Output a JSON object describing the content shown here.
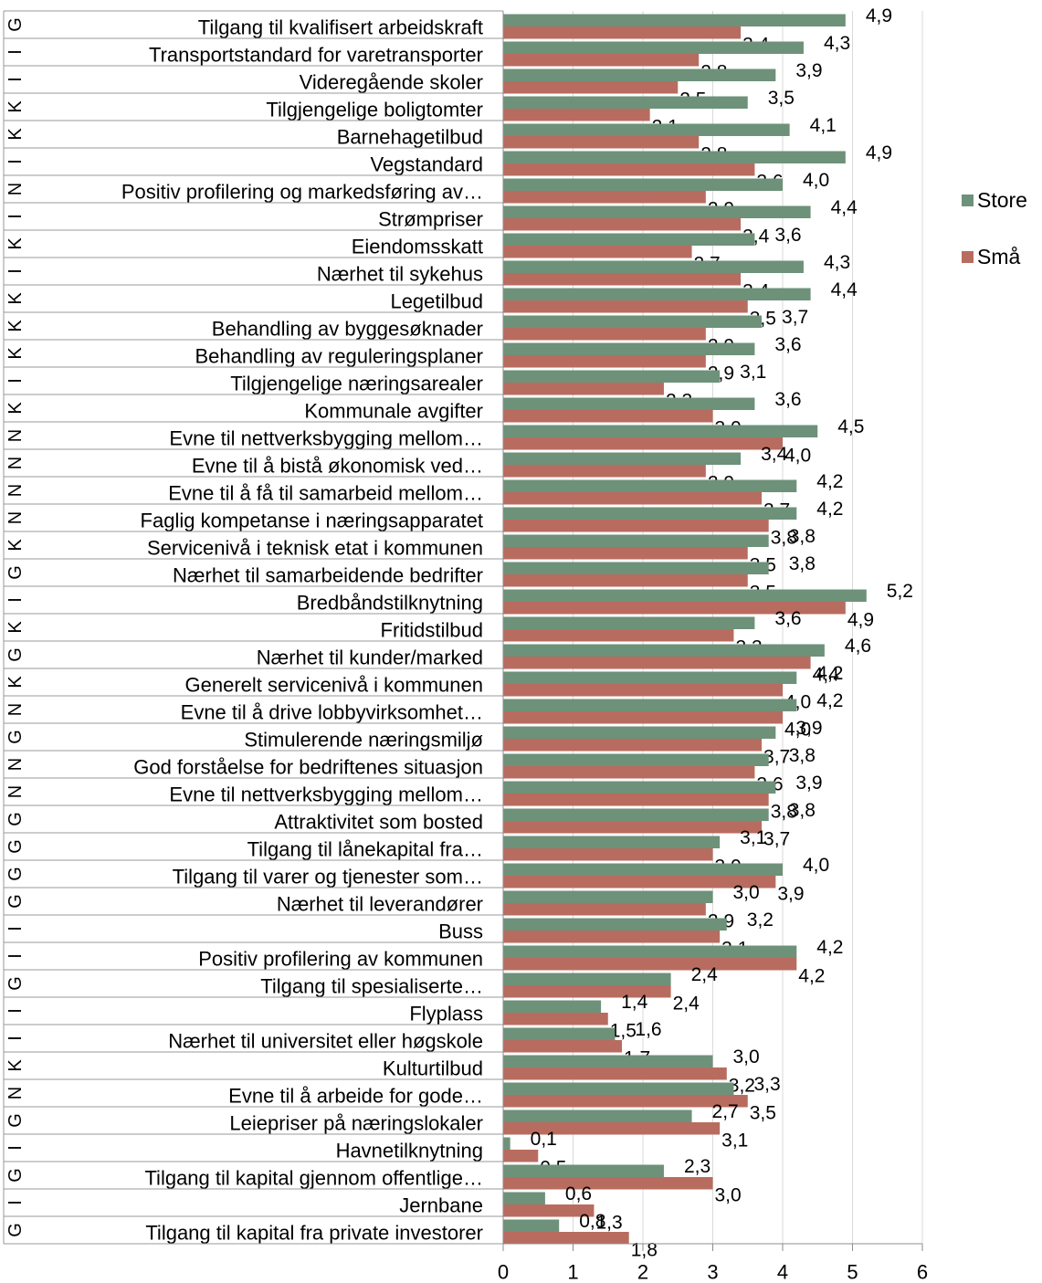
{
  "chart_data": {
    "type": "bar",
    "orientation": "horizontal",
    "group_codes": [
      "G",
      "I",
      "I",
      "K",
      "K",
      "I",
      "N",
      "I",
      "K",
      "I",
      "K",
      "K",
      "K",
      "I",
      "K",
      "N",
      "N",
      "N",
      "N",
      "K",
      "G",
      "I",
      "K",
      "G",
      "K",
      "N",
      "G",
      "N",
      "N",
      "G",
      "G",
      "G",
      "G",
      "I",
      "I",
      "G",
      "I",
      "I",
      "K",
      "N",
      "G",
      "I",
      "G",
      "I",
      "G"
    ],
    "categories": [
      "Tilgang til kvalifisert arbeidskraft",
      "Transportstandard for varetransporter",
      "Videregående skoler",
      "Tilgjengelige boligtomter",
      "Barnehagetilbud",
      "Vegstandard",
      "Positiv profilering og markedsføring av…",
      "Strømpriser",
      "Eiendomsskatt",
      "Nærhet til sykehus",
      "Legetilbud",
      "Behandling av byggesøknader",
      "Behandling av reguleringsplaner",
      "Tilgjengelige næringsarealer",
      "Kommunale avgifter",
      "Evne til nettverksbygging mellom…",
      "Evne til å bistå økonomisk ved…",
      "Evne til å få til samarbeid mellom…",
      "Faglig kompetanse i næringsapparatet",
      "Servicenivå i teknisk etat i kommunen",
      "Nærhet til samarbeidende bedrifter",
      "Bredbåndstilknytning",
      "Fritidstilbud",
      "Nærhet til kunder/marked",
      "Generelt servicenivå i kommunen",
      "Evne til å drive lobbyvirksomhet…",
      "Stimulerende næringsmiljø",
      "God forståelse for bedriftenes situasjon",
      "Evne til nettverksbygging mellom…",
      "Attraktivitet som bosted",
      "Tilgang til lånekapital fra…",
      "Tilgang til varer og tjenester som…",
      "Nærhet til leverandører",
      "Buss",
      "Positiv profilering av kommunen",
      "Tilgang til spesialiserte…",
      "Flyplass",
      "Nærhet til universitet eller høgskole",
      "Kulturtilbud",
      "Evne til å arbeide for gode…",
      "Leiepriser på næringslokaler",
      "Havnetilknytning",
      "Tilgang til kapital gjennom offentlige…",
      "Jernbane",
      "Tilgang til kapital fra private investorer"
    ],
    "series": [
      {
        "name": "Store",
        "color": "#6e9179",
        "values": [
          4.9,
          4.3,
          3.9,
          3.5,
          4.1,
          4.9,
          4.0,
          4.4,
          3.6,
          4.3,
          4.4,
          3.7,
          3.6,
          3.1,
          3.6,
          4.5,
          3.4,
          4.2,
          4.2,
          3.8,
          3.8,
          5.2,
          3.6,
          4.6,
          4.2,
          4.2,
          3.9,
          3.8,
          3.9,
          3.8,
          3.1,
          4.0,
          3.0,
          3.2,
          4.2,
          2.4,
          1.4,
          1.6,
          3.0,
          3.3,
          2.7,
          0.1,
          2.3,
          0.6,
          0.8
        ],
        "labels": [
          "4,9",
          "4,3",
          "3,9",
          "3,5",
          "4,1",
          "4,9",
          "4,0",
          "4,4",
          "3,6",
          "4,3",
          "4,4",
          "3,7",
          "3,6",
          "3,1",
          "3,6",
          "4,5",
          "3,4",
          "4,2",
          "4,2",
          "3,8",
          "3,8",
          "5,2",
          "3,6",
          "4,6",
          "4,2",
          "4,2",
          "3,9",
          "3,8",
          "3,9",
          "3,8",
          "3,1",
          "4,0",
          "3,0",
          "3,2",
          "4,2",
          "2,4",
          "1,4",
          "1,6",
          "3,0",
          "3,3",
          "2,7",
          "0,1",
          "2,3",
          "0,6",
          "0,8"
        ]
      },
      {
        "name": "Små",
        "color": "#b86c5f",
        "values": [
          3.4,
          2.8,
          2.5,
          2.1,
          2.8,
          3.6,
          2.9,
          3.4,
          2.7,
          3.4,
          3.5,
          2.9,
          2.9,
          2.3,
          3.0,
          4.0,
          2.9,
          3.7,
          3.8,
          3.5,
          3.5,
          4.9,
          3.3,
          4.4,
          4.0,
          4.0,
          3.7,
          3.6,
          3.8,
          3.7,
          3.0,
          3.9,
          2.9,
          3.1,
          4.2,
          2.4,
          1.5,
          1.7,
          3.2,
          3.5,
          3.1,
          0.5,
          3.0,
          1.3,
          1.8
        ],
        "labels": [
          "3,4",
          "2,8",
          "2,5",
          "2,1",
          "2,8",
          "3,6",
          "2,9",
          "3,4",
          "2,7",
          "3,4",
          "3,5",
          "2,9",
          "2,9",
          "2,3",
          "3,0",
          "4,0",
          "2,9",
          "3,7",
          "3,8",
          "3,5",
          "3,5",
          "4,9",
          "3,3",
          "4,4",
          "4,0",
          "4,0",
          "3,7",
          "3,6",
          "3,8",
          "3,7",
          "3,0",
          "3,9",
          "2,9",
          "3,1",
          "4,2",
          "2,4",
          "1,5",
          "1,7",
          "3,2",
          "3,5",
          "3,1",
          "0,5",
          "3,0",
          "1,3",
          "1,8"
        ]
      }
    ],
    "xlim": [
      0,
      6
    ],
    "xticks": [
      "0",
      "1",
      "2",
      "3",
      "4",
      "5",
      "6"
    ],
    "grid": true,
    "legend_position": "right"
  }
}
